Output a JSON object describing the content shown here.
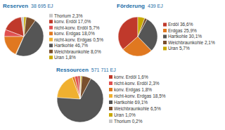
{
  "chart_data": [
    {
      "type": "pie",
      "title": "Förderung",
      "subtitle": "439 EJ",
      "values": [
        36.6,
        25.9,
        30.1,
        2.1,
        5.7
      ],
      "value_labels": [
        "Erdöl 36,6%",
        "Erdgas 25,9%",
        "Hartkohle 30,1%",
        "Weichbraunkohle 2,1%",
        "Uran 5,7%"
      ],
      "colors": [
        "#c0392b",
        "#e07820",
        "#555555",
        "#7a4f2d",
        "#c8a800"
      ]
    },
    {
      "type": "pie",
      "title": "Reserven",
      "subtitle": "38 695 EJ",
      "values": [
        2.3,
        17.0,
        5.7,
        18.0,
        0.5,
        46.7,
        8.0,
        1.8
      ],
      "value_labels": [
        "Thorium 2,3%",
        "konv. Erdöl 17,0%",
        "nicht-konv. Erdöl 5,7%",
        "konv. Erdgas 18,0%",
        "nicht-konv. Erdgas 0,5%",
        "Hartkohle 46,7%",
        "Weichbraunkohle 8,0%",
        "Uran 1,8%"
      ],
      "colors": [
        "#c8c8c8",
        "#c0392b",
        "#e05050",
        "#e07820",
        "#f0b030",
        "#555555",
        "#7a4f2d",
        "#c8a800"
      ]
    },
    {
      "type": "pie",
      "title": "Ressourcen",
      "subtitle": "571 711 EJ",
      "values": [
        1.6,
        2.3,
        1.8,
        18.5,
        69.1,
        6.5,
        1.0,
        0.2
      ],
      "value_labels": [
        "konv. Erdöl 1,6%",
        "nicht-konv. Erdöl 2,3%",
        "konv. Erdgas 1,8%",
        "nicht-konv. Erdgas 18,5%",
        "Hartkohle 69,1%",
        "Weichbraunkohle 6,5%",
        "Uran 1,0%",
        "Thorium 0,2%"
      ],
      "colors": [
        "#c0392b",
        "#e05050",
        "#e07820",
        "#f0b030",
        "#555555",
        "#7a4f2d",
        "#c8a800",
        "#c8c8c8"
      ]
    }
  ]
}
